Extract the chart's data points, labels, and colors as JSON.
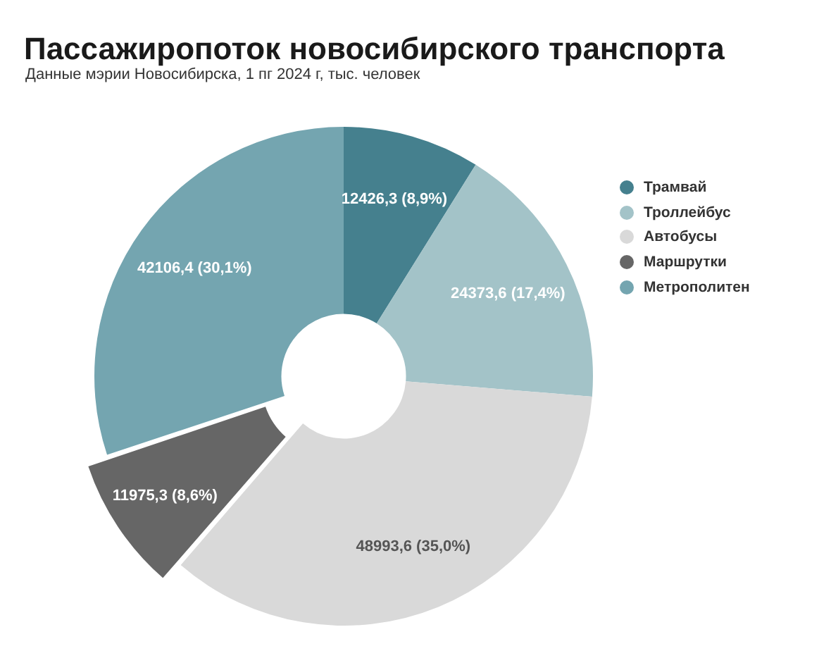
{
  "chart_data": {
    "type": "donut",
    "title": "Пассажиропоток новосибирского транспорта",
    "subtitle": "Данные мэрии Новосибирска, 1 пг 2024 г, тыс. человек",
    "categories": [
      "Трамвай",
      "Троллейбус",
      "Автобусы",
      "Маршрутки",
      "Метрополитен"
    ],
    "values": [
      12426.3,
      24373.6,
      48993.6,
      11975.3,
      42106.4
    ],
    "colors": [
      "#45808e",
      "#a3c3c8",
      "#d9d9d9",
      "#666666",
      "#74a5b0"
    ],
    "value_labels": [
      "12426,3 (8,9%)",
      "24373,6 (17,4%)",
      "48993,6 (35,0%)",
      "11975,3 (8,6%)",
      "42106,4 (30,1%)"
    ],
    "legend": "right"
  }
}
